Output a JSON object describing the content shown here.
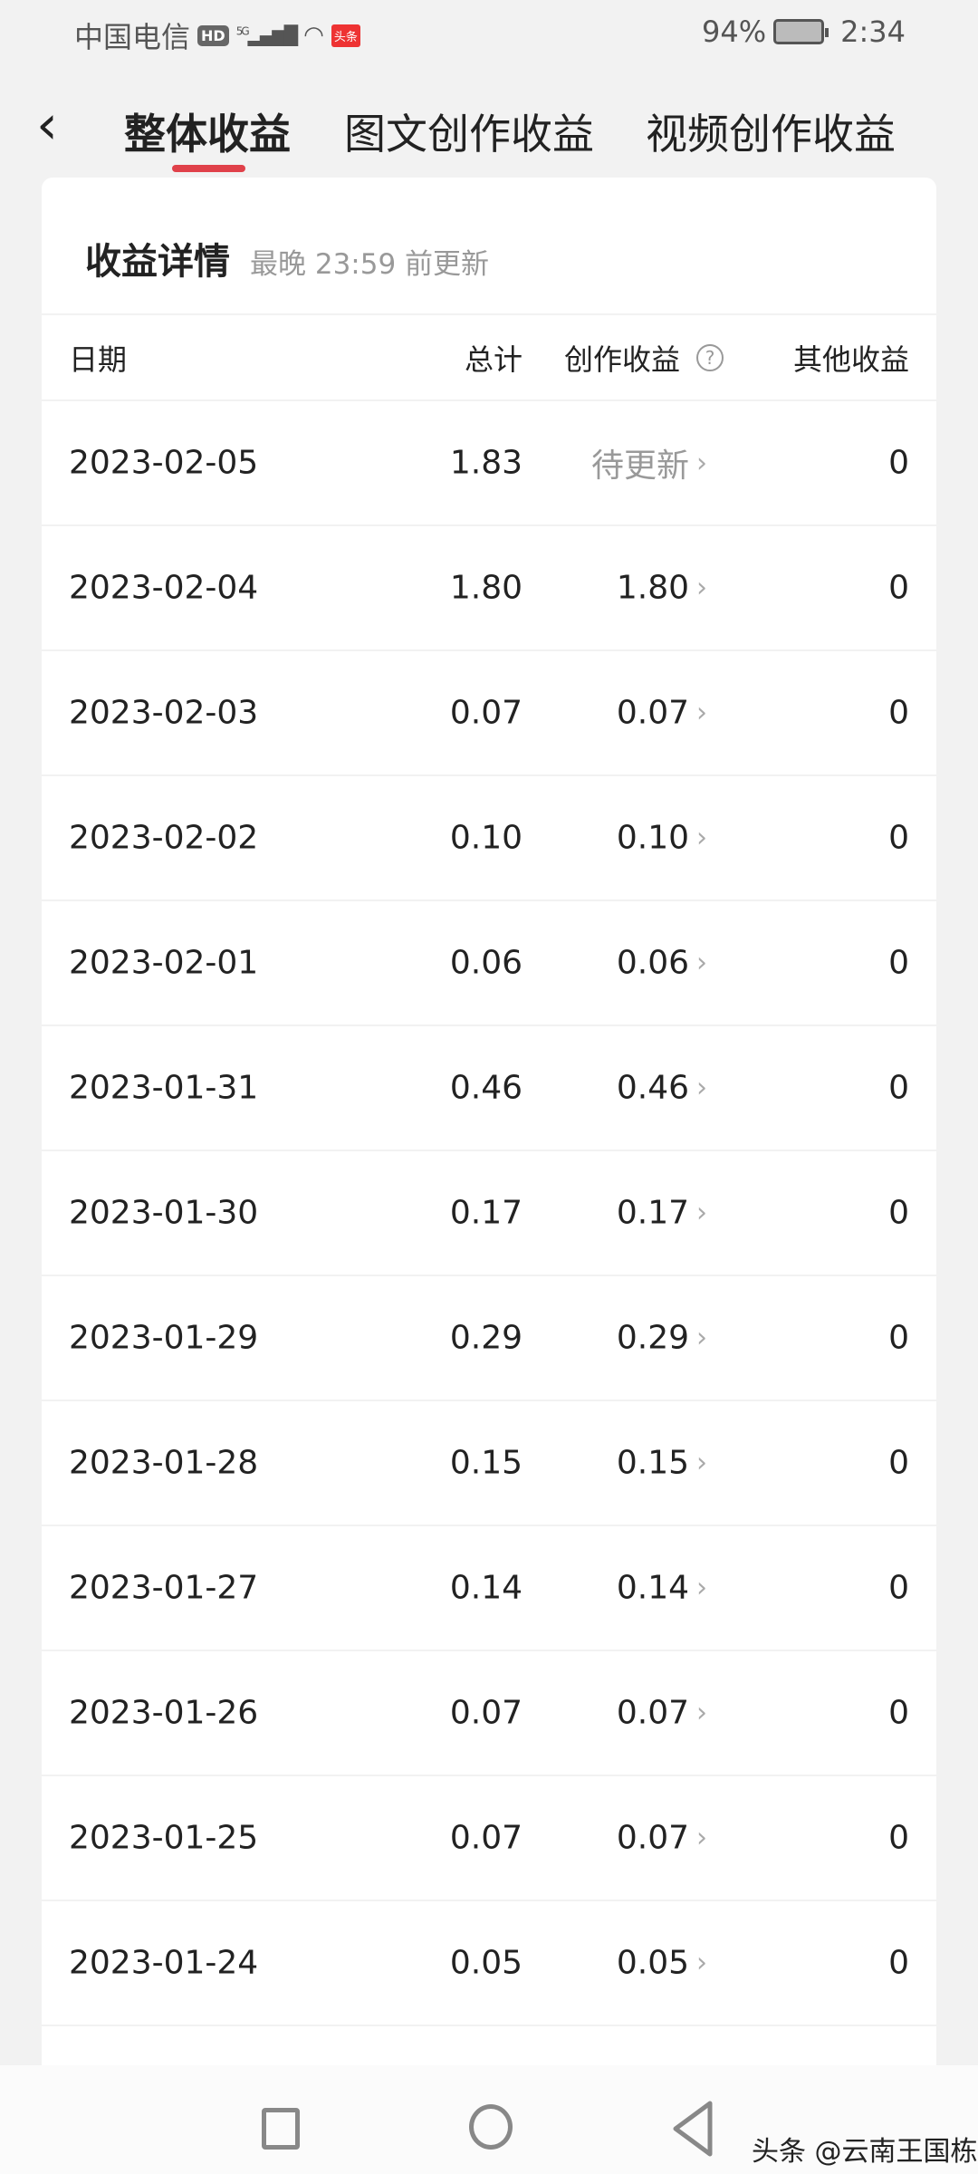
{
  "status_bar": {
    "carrier": "中国电信",
    "hd": "HD",
    "network": "5G",
    "app_badge": "头条",
    "battery": "94%",
    "time": "2:34"
  },
  "nav": {
    "tabs": [
      {
        "label": "整体收益",
        "active": true
      },
      {
        "label": "图文创作收益",
        "active": false
      },
      {
        "label": "视频创作收益",
        "active": false
      }
    ],
    "accent": "#e0414a"
  },
  "card": {
    "title": "收益详情",
    "subtitle": "最晚 23:59 前更新",
    "headers": {
      "date": "日期",
      "total": "总计",
      "creation": "创作收益",
      "other": "其他收益"
    },
    "rows": [
      {
        "date": "2023-02-05",
        "total": "1.83",
        "creation": "待更新",
        "other": "0"
      },
      {
        "date": "2023-02-04",
        "total": "1.80",
        "creation": "1.80",
        "other": "0"
      },
      {
        "date": "2023-02-03",
        "total": "0.07",
        "creation": "0.07",
        "other": "0"
      },
      {
        "date": "2023-02-02",
        "total": "0.10",
        "creation": "0.10",
        "other": "0"
      },
      {
        "date": "2023-02-01",
        "total": "0.06",
        "creation": "0.06",
        "other": "0"
      },
      {
        "date": "2023-01-31",
        "total": "0.46",
        "creation": "0.46",
        "other": "0"
      },
      {
        "date": "2023-01-30",
        "total": "0.17",
        "creation": "0.17",
        "other": "0"
      },
      {
        "date": "2023-01-29",
        "total": "0.29",
        "creation": "0.29",
        "other": "0"
      },
      {
        "date": "2023-01-28",
        "total": "0.15",
        "creation": "0.15",
        "other": "0"
      },
      {
        "date": "2023-01-27",
        "total": "0.14",
        "creation": "0.14",
        "other": "0"
      },
      {
        "date": "2023-01-26",
        "total": "0.07",
        "creation": "0.07",
        "other": "0"
      },
      {
        "date": "2023-01-25",
        "total": "0.07",
        "creation": "0.07",
        "other": "0"
      },
      {
        "date": "2023-01-24",
        "total": "0.05",
        "creation": "0.05",
        "other": "0"
      }
    ]
  },
  "watermark": "头条 @云南王国栋"
}
